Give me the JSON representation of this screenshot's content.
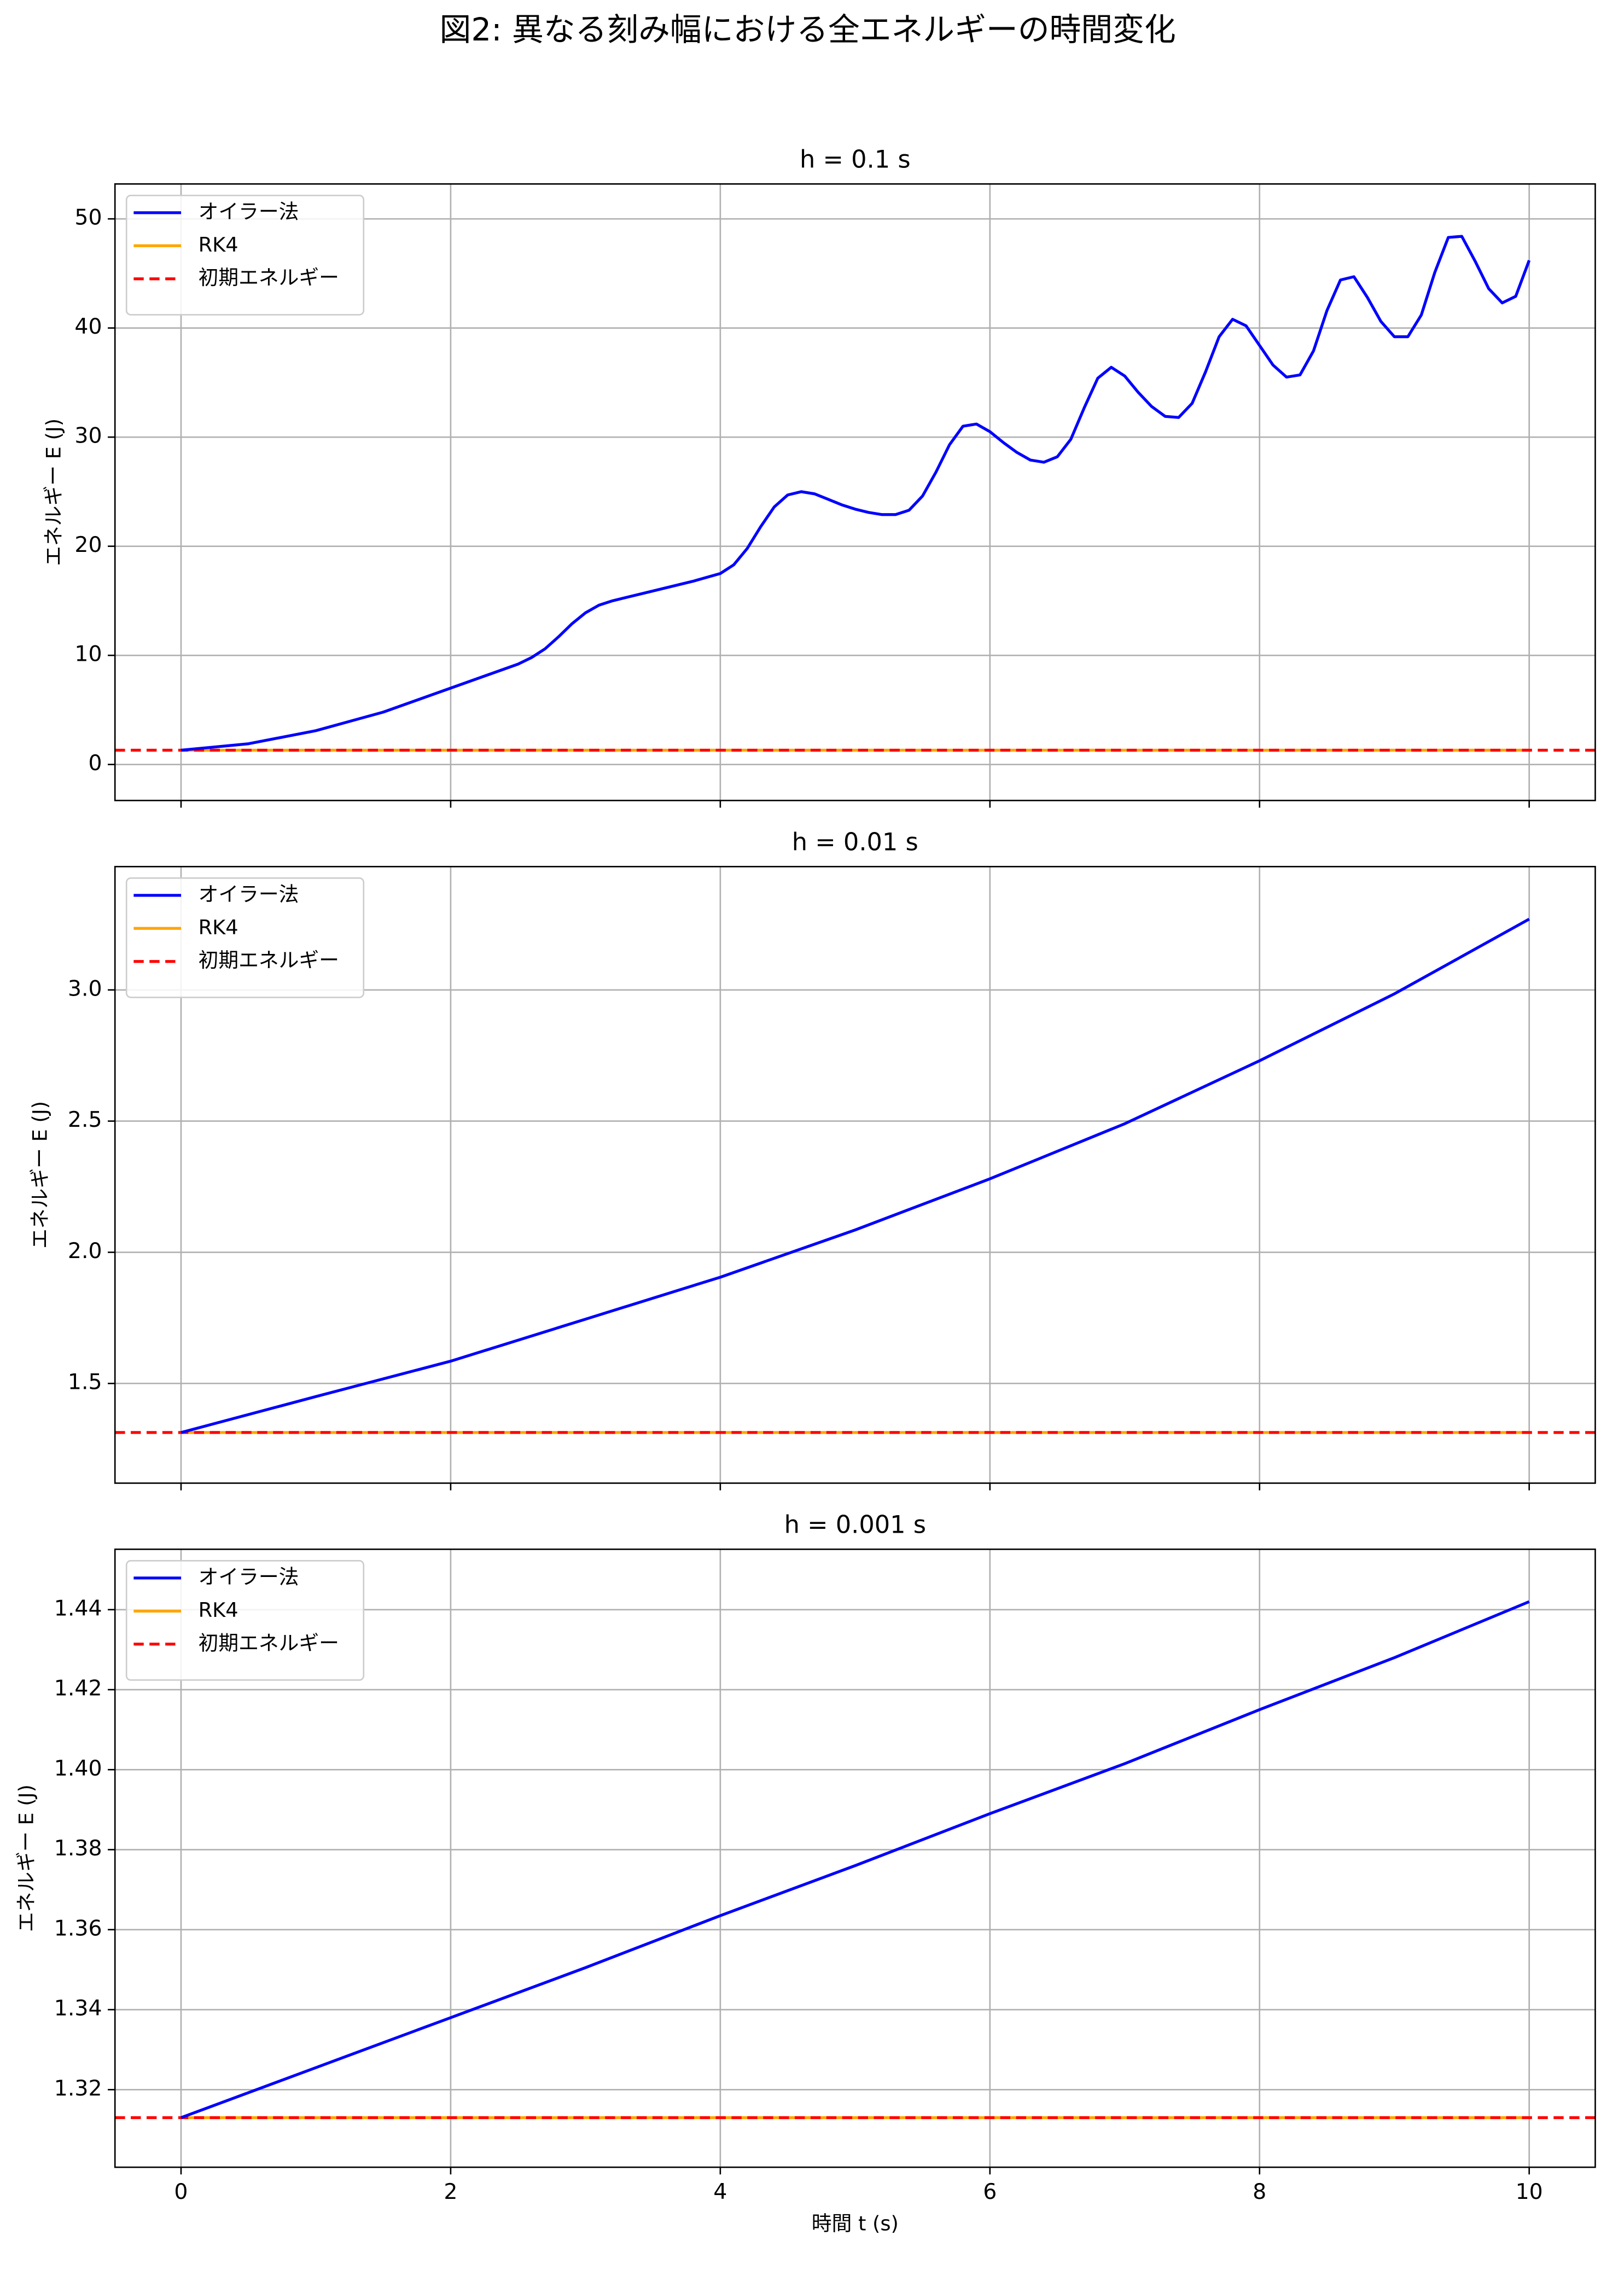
{
  "title": "図2: 異なる刻み幅における全エネルギーの時間変化",
  "sharex": true,
  "chart_data": [
    {
      "type": "line",
      "title": "h = 0.1 s",
      "ylabel": "エネルギー E (J)",
      "xlim": [
        -0.49,
        10.49
      ],
      "xticks": [
        0,
        2,
        4,
        6,
        8,
        10
      ],
      "ylim": [
        -3.3,
        53.2
      ],
      "yticks": [
        0,
        10,
        20,
        30,
        40,
        50
      ],
      "grid": true,
      "legend": "upper left",
      "series": [
        {
          "name": "オイラー法",
          "color": "#0000ff",
          "x": [
            0,
            0.5,
            1.0,
            1.5,
            2.0,
            2.5,
            2.6,
            2.7,
            2.8,
            2.9,
            3.0,
            3.1,
            3.2,
            3.5,
            3.8,
            4.0,
            4.1,
            4.2,
            4.3,
            4.4,
            4.5,
            4.6,
            4.7,
            4.8,
            4.9,
            5.0,
            5.1,
            5.2,
            5.3,
            5.4,
            5.5,
            5.6,
            5.7,
            5.8,
            5.9,
            6.0,
            6.1,
            6.2,
            6.3,
            6.4,
            6.5,
            6.6,
            6.7,
            6.8,
            6.9,
            7.0,
            7.1,
            7.2,
            7.3,
            7.4,
            7.5,
            7.6,
            7.7,
            7.8,
            7.9,
            8.0,
            8.1,
            8.2,
            8.3,
            8.4,
            8.5,
            8.6,
            8.7,
            8.8,
            8.9,
            9.0,
            9.1,
            9.2,
            9.3,
            9.4,
            9.5,
            9.6,
            9.7,
            9.8,
            9.9,
            10.0
          ],
          "values": [
            1.31,
            1.9,
            3.1,
            4.8,
            7.0,
            9.2,
            9.8,
            10.6,
            11.7,
            12.9,
            13.9,
            14.6,
            15.0,
            15.9,
            16.8,
            17.5,
            18.3,
            19.8,
            21.8,
            23.6,
            24.7,
            25.0,
            24.8,
            24.3,
            23.8,
            23.4,
            23.1,
            22.9,
            22.9,
            23.3,
            24.6,
            26.8,
            29.3,
            31.0,
            31.2,
            30.5,
            29.5,
            28.6,
            27.9,
            27.7,
            28.2,
            29.8,
            32.7,
            35.4,
            36.4,
            35.6,
            34.1,
            32.8,
            31.9,
            31.8,
            33.1,
            36.0,
            39.2,
            40.8,
            40.2,
            38.4,
            36.6,
            35.5,
            35.7,
            37.9,
            41.6,
            44.4,
            44.7,
            42.8,
            40.6,
            39.2,
            39.2,
            41.2,
            45.1,
            48.3,
            48.4,
            46.1,
            43.6,
            42.3,
            42.9,
            46.2
          ]
        },
        {
          "name": "RK4",
          "color": "#ffa500",
          "x": [
            0,
            10
          ],
          "values": [
            1.313,
            1.313
          ]
        },
        {
          "name": "初期エネルギー",
          "color": "#ff0000",
          "linestyle": "dashed",
          "hline": 1.313
        }
      ]
    },
    {
      "type": "line",
      "title": "h = 0.01 s",
      "ylabel": "エネルギー E (J)",
      "xlim": [
        -0.49,
        10.49
      ],
      "xticks": [
        0,
        2,
        4,
        6,
        8,
        10
      ],
      "ylim": [
        1.12,
        3.47
      ],
      "yticks": [
        1.5,
        {
          "value": 2.0,
          "label": "2.0"
        },
        2.5,
        {
          "value": 3.0,
          "label": "3.0"
        }
      ],
      "grid": true,
      "legend": "upper left",
      "series": [
        {
          "name": "オイラー法",
          "color": "#0000ff",
          "x": [
            0,
            1,
            2,
            3,
            4,
            5,
            6,
            7,
            8,
            9,
            10
          ],
          "values": [
            1.313,
            1.45,
            1.585,
            1.745,
            1.905,
            2.085,
            2.28,
            2.49,
            2.73,
            2.985,
            3.27
          ]
        },
        {
          "name": "RK4",
          "color": "#ffa500",
          "x": [
            0,
            10
          ],
          "values": [
            1.313,
            1.313
          ]
        },
        {
          "name": "初期エネルギー",
          "color": "#ff0000",
          "linestyle": "dashed",
          "hline": 1.313
        }
      ]
    },
    {
      "type": "line",
      "title": "h = 0.001 s",
      "ylabel": "エネルギー E (J)",
      "xlabel": "時間 t (s)",
      "xlim": [
        -0.49,
        10.49
      ],
      "xticks": [
        0,
        2,
        4,
        6,
        8,
        10
      ],
      "ylim": [
        1.3006,
        1.4551
      ],
      "yticks": [
        1.32,
        1.34,
        1.36,
        1.38,
        {
          "value": 1.4,
          "label": "1.40"
        },
        1.42,
        1.44
      ],
      "grid": true,
      "legend": "upper left",
      "series": [
        {
          "name": "オイラー法",
          "color": "#0000ff",
          "x": [
            0,
            1,
            2,
            3,
            4,
            5,
            6,
            7,
            8,
            9,
            10
          ],
          "values": [
            1.313,
            1.3255,
            1.338,
            1.3505,
            1.3635,
            1.376,
            1.389,
            1.4015,
            1.415,
            1.428,
            1.442
          ]
        },
        {
          "name": "RK4",
          "color": "#ffa500",
          "x": [
            0,
            10
          ],
          "values": [
            1.313,
            1.313
          ]
        },
        {
          "name": "初期エネルギー",
          "color": "#ff0000",
          "linestyle": "dashed",
          "hline": 1.313
        }
      ]
    }
  ]
}
